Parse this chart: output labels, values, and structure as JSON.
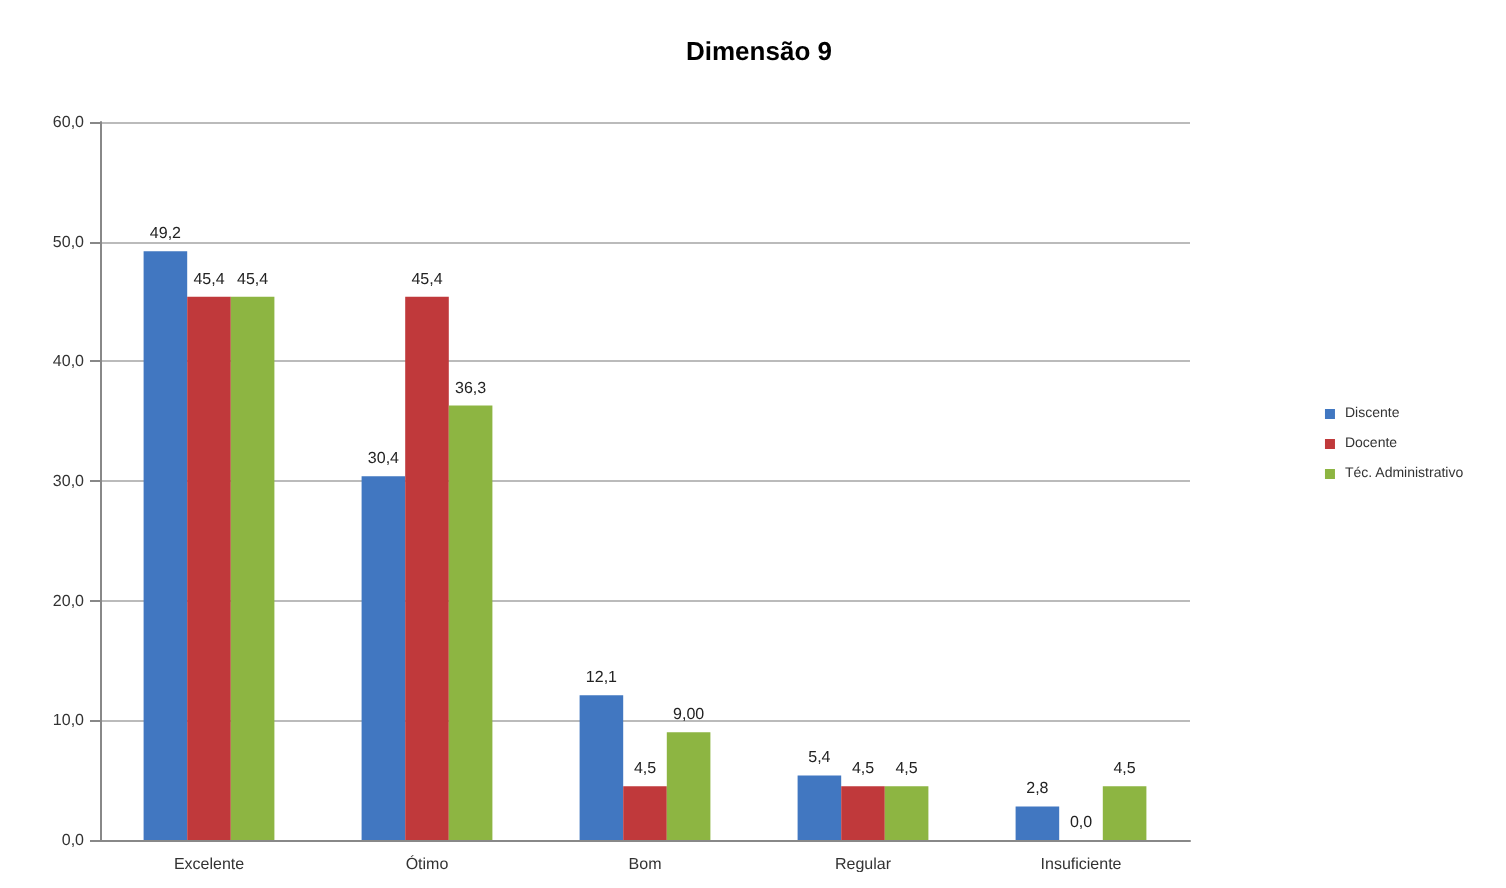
{
  "chart_data": {
    "type": "bar",
    "title": "Dimensão 9",
    "categories": [
      "Excelente",
      "Ótimo",
      "Bom",
      "Regular",
      "Insuficiente"
    ],
    "series": [
      {
        "name": "Discente",
        "color": "#4177c1",
        "values": [
          49.2,
          30.4,
          12.1,
          5.4,
          2.8
        ],
        "value_labels": [
          "49,2",
          "30,4",
          "12,1",
          "5,4",
          "2,8"
        ]
      },
      {
        "name": "Docente",
        "color": "#c0393b",
        "values": [
          45.4,
          45.4,
          4.5,
          4.5,
          0.0
        ],
        "value_labels": [
          "45,4",
          "45,4",
          "4,5",
          "4,5",
          "0,0"
        ]
      },
      {
        "name": "Téc. Administrativo",
        "color": "#8db542",
        "values": [
          45.4,
          36.3,
          9.0,
          4.5,
          4.5
        ],
        "value_labels": [
          "45,4",
          "36,3",
          "9,00",
          "4,5",
          "4,5"
        ]
      }
    ],
    "ylim": [
      0,
      60
    ],
    "yticks": [
      {
        "value": 0,
        "label": "0,0"
      },
      {
        "value": 10,
        "label": "10,0"
      },
      {
        "value": 20,
        "label": "20,0"
      },
      {
        "value": 30,
        "label": "30,0"
      },
      {
        "value": 40,
        "label": "40,0"
      },
      {
        "value": 50,
        "label": "50,0"
      },
      {
        "value": 60,
        "label": "60,0"
      }
    ],
    "grid": "y",
    "legend": "right"
  }
}
